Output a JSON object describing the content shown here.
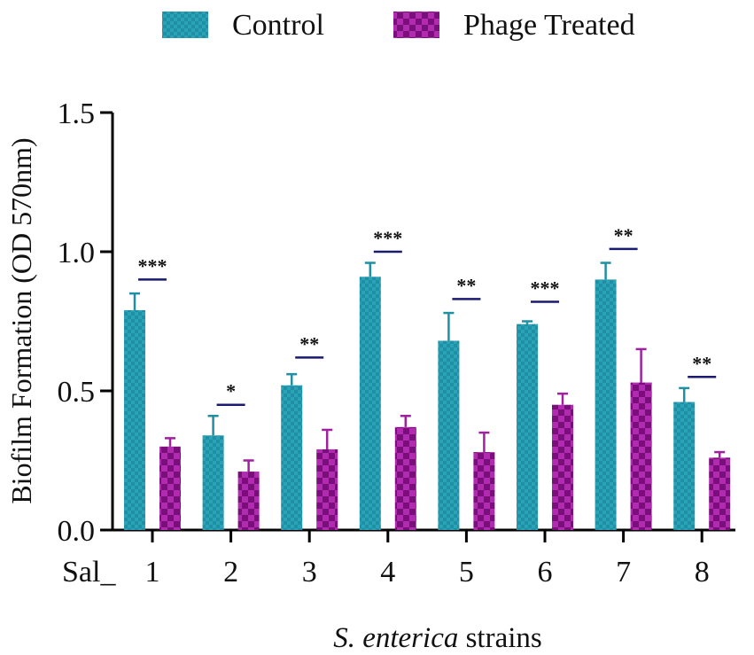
{
  "chart_data": {
    "type": "bar",
    "title": "",
    "xlabel_italic": "S. enterica",
    "xlabel_rest": " strains",
    "ylabel": "Biofilm Formation (OD 570nm)",
    "category_prefix": "Sal_",
    "categories": [
      "1",
      "2",
      "3",
      "4",
      "5",
      "6",
      "7",
      "8"
    ],
    "ylim": [
      0,
      1.5
    ],
    "yticks": [
      "0.0",
      "0.5",
      "1.0",
      "1.5"
    ],
    "ytick_values": [
      0,
      0.5,
      1.0,
      1.5
    ],
    "legend_position": "top",
    "series": [
      {
        "name": "Control",
        "color": "#1f8fa3",
        "values": [
          0.79,
          0.34,
          0.52,
          0.91,
          0.68,
          0.74,
          0.9,
          0.46
        ],
        "errors": [
          0.06,
          0.07,
          0.04,
          0.05,
          0.1,
          0.01,
          0.06,
          0.05
        ]
      },
      {
        "name": "Phage Treated",
        "color": "#a020a0",
        "values": [
          0.3,
          0.21,
          0.29,
          0.37,
          0.28,
          0.45,
          0.53,
          0.26
        ],
        "errors": [
          0.03,
          0.04,
          0.07,
          0.04,
          0.07,
          0.04,
          0.12,
          0.02
        ]
      }
    ],
    "significance": [
      {
        "label": "***",
        "y": 0.9
      },
      {
        "label": "*",
        "y": 0.45
      },
      {
        "label": "**",
        "y": 0.62
      },
      {
        "label": "***",
        "y": 1.0
      },
      {
        "label": "**",
        "y": 0.83
      },
      {
        "label": "***",
        "y": 0.82
      },
      {
        "label": "**",
        "y": 1.01
      },
      {
        "label": "**",
        "y": 0.55
      }
    ],
    "significance_color": "#1a1a6e"
  }
}
